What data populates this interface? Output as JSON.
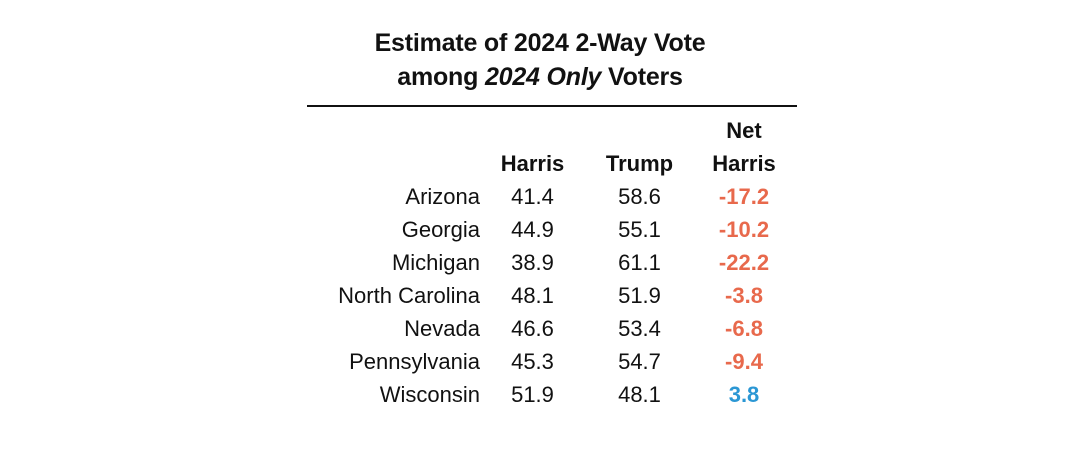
{
  "chart_data": {
    "type": "table",
    "title_line1": "Estimate of 2024 2-Way Vote",
    "title_line2_prefix": "among ",
    "title_line2_emphasis": "2024 Only",
    "title_line2_suffix": " Voters",
    "columns": {
      "state": "",
      "harris": "Harris",
      "trump": "Trump",
      "net_line1": "Net",
      "net_line2": "Harris"
    },
    "rows": [
      {
        "state": "Arizona",
        "harris": "41.4",
        "trump": "58.6",
        "net": "-17.2"
      },
      {
        "state": "Georgia",
        "harris": "44.9",
        "trump": "55.1",
        "net": "-10.2"
      },
      {
        "state": "Michigan",
        "harris": "38.9",
        "trump": "61.1",
        "net": "-22.2"
      },
      {
        "state": "North Carolina",
        "harris": "48.1",
        "trump": "51.9",
        "net": "-3.8"
      },
      {
        "state": "Nevada",
        "harris": "46.6",
        "trump": "53.4",
        "net": "-6.8"
      },
      {
        "state": "Pennsylvania",
        "harris": "45.3",
        "trump": "54.7",
        "net": "-9.4"
      },
      {
        "state": "Wisconsin",
        "harris": "51.9",
        "trump": "48.1",
        "net": "3.8"
      }
    ]
  },
  "colors": {
    "negative": "#e8694c",
    "positive": "#2b97d4",
    "text": "#111111"
  }
}
